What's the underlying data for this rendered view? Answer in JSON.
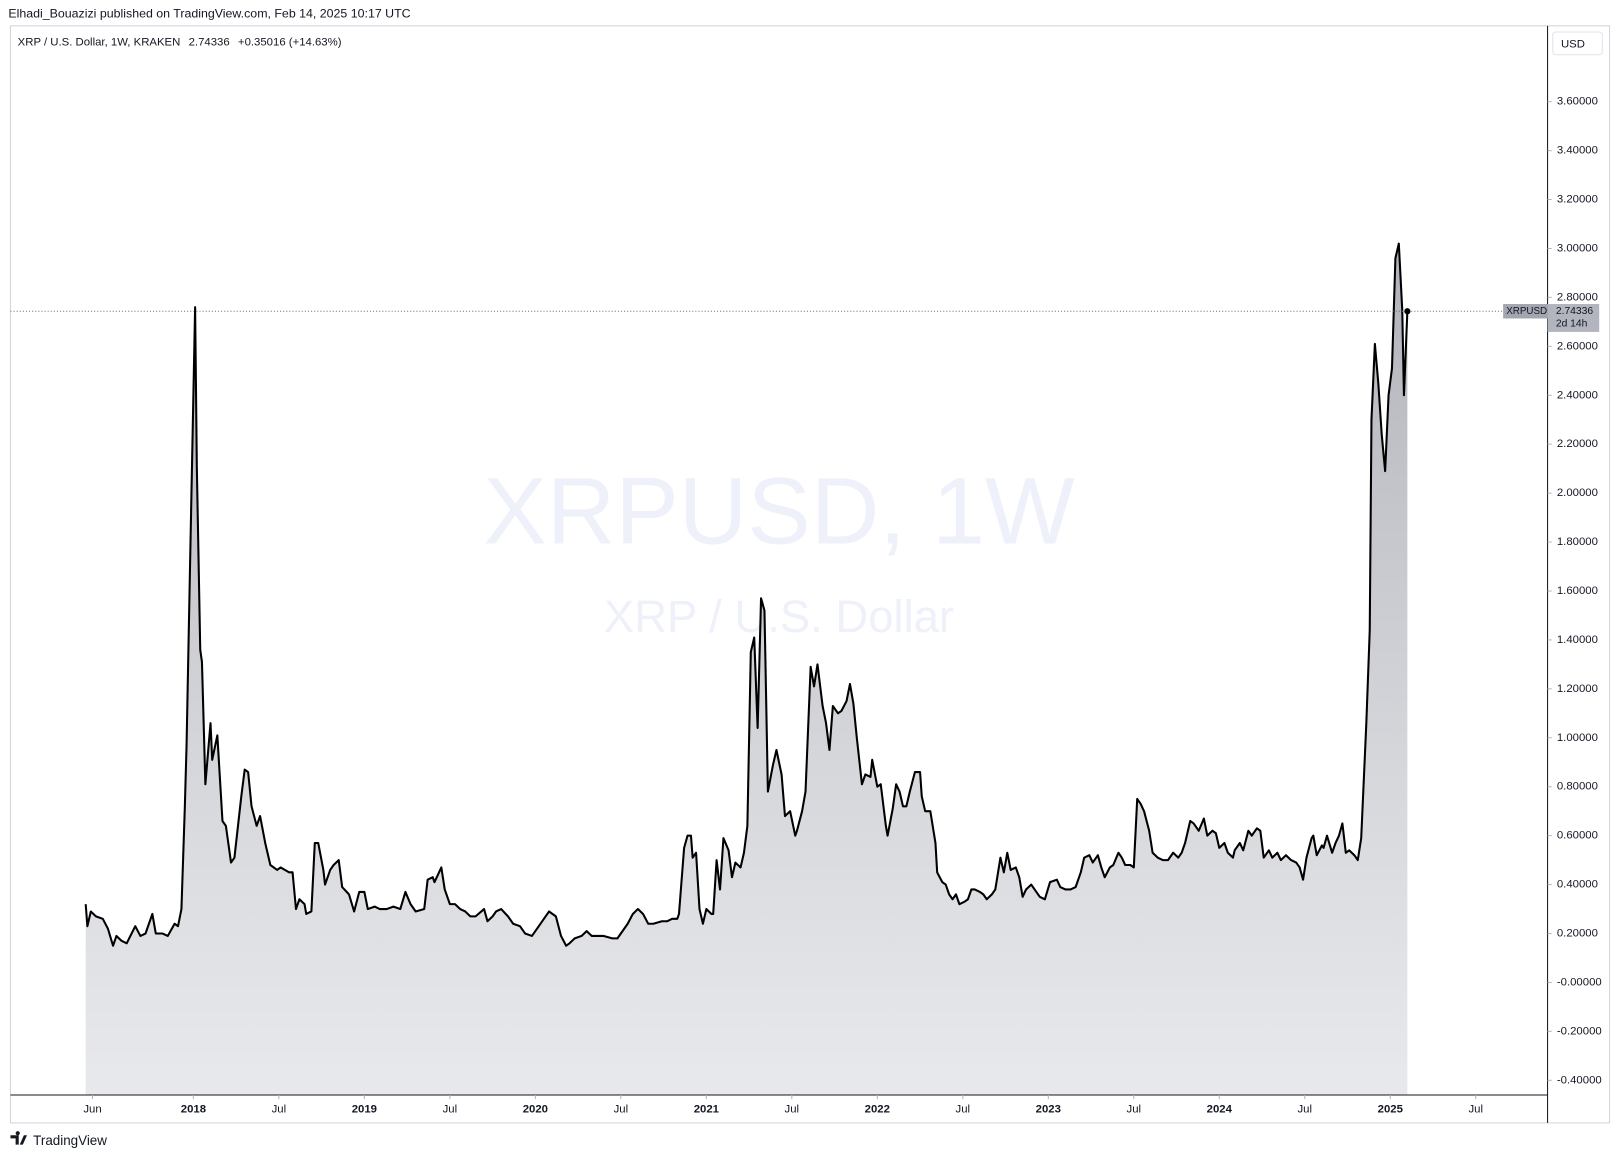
{
  "header": "Elhadi_Bouazizi published on TradingView.com, Feb 14, 2025 10:17 UTC",
  "footer": "TradingView",
  "chart_data": {
    "type": "area",
    "symbol": "XRP / U.S. Dollar, 1W, KRAKEN",
    "change": "+0.35016 (+14.63%)",
    "currency": "USD",
    "watermark": "XRPUSD, 1W",
    "watermark_subtitle": "XRP / U.S. Dollar",
    "countdown": "2d 14h",
    "x": [
      2017.37,
      2017.38,
      2017.4,
      2017.43,
      2017.47,
      2017.5,
      2017.53,
      2017.55,
      2017.58,
      2017.61,
      2017.66,
      2017.69,
      2017.72,
      2017.76,
      2017.78,
      2017.82,
      2017.85,
      2017.89,
      2017.91,
      2017.93,
      2017.95,
      2017.96,
      2017.98,
      2018.01,
      2018.02,
      2018.04,
      2018.05,
      2018.07,
      2018.1,
      2018.11,
      2018.14,
      2018.17,
      2018.19,
      2018.22,
      2018.24,
      2018.28,
      2018.3,
      2018.32,
      2018.34,
      2018.37,
      2018.39,
      2018.42,
      2018.45,
      2018.49,
      2018.51,
      2018.56,
      2018.58,
      2018.6,
      2018.62,
      2018.65,
      2018.66,
      2018.69,
      2018.71,
      2018.73,
      2018.76,
      2018.77,
      2018.8,
      2018.82,
      2018.85,
      2018.87,
      2018.91,
      2018.94,
      2018.97,
      2019.0,
      2019.02,
      2019.06,
      2019.09,
      2019.13,
      2019.17,
      2019.21,
      2019.24,
      2019.27,
      2019.3,
      2019.35,
      2019.37,
      2019.4,
      2019.41,
      2019.45,
      2019.47,
      2019.5,
      2019.53,
      2019.56,
      2019.59,
      2019.62,
      2019.65,
      2019.7,
      2019.72,
      2019.75,
      2019.77,
      2019.8,
      2019.84,
      2019.87,
      2019.91,
      2019.94,
      2019.98,
      2020.02,
      2020.05,
      2020.08,
      2020.12,
      2020.15,
      2020.18,
      2020.2,
      2020.23,
      2020.27,
      2020.3,
      2020.33,
      2020.36,
      2020.4,
      2020.45,
      2020.48,
      2020.52,
      2020.54,
      2020.57,
      2020.6,
      2020.63,
      2020.66,
      2020.69,
      2020.74,
      2020.77,
      2020.8,
      2020.83,
      2020.84,
      2020.87,
      2020.89,
      2020.91,
      2020.92,
      2020.94,
      2020.96,
      2020.98,
      2021.0,
      2021.03,
      2021.04,
      2021.06,
      2021.08,
      2021.1,
      2021.13,
      2021.15,
      2021.17,
      2021.2,
      2021.22,
      2021.24,
      2021.26,
      2021.28,
      2021.3,
      2021.32,
      2021.34,
      2021.36,
      2021.39,
      2021.41,
      2021.44,
      2021.46,
      2021.49,
      2021.52,
      2021.53,
      2021.56,
      2021.58,
      2021.61,
      2021.63,
      2021.65,
      2021.68,
      2021.7,
      2021.72,
      2021.74,
      2021.77,
      2021.79,
      2021.82,
      2021.84,
      2021.86,
      2021.88,
      2021.91,
      2021.93,
      2021.96,
      2021.97,
      2022.0,
      2022.02,
      2022.05,
      2022.06,
      2022.09,
      2022.11,
      2022.13,
      2022.15,
      2022.17,
      2022.19,
      2022.22,
      2022.25,
      2022.26,
      2022.28,
      2022.31,
      2022.34,
      2022.35,
      2022.38,
      2022.4,
      2022.42,
      2022.44,
      2022.46,
      2022.48,
      2022.51,
      2022.53,
      2022.55,
      2022.57,
      2022.6,
      2022.62,
      2022.64,
      2022.67,
      2022.69,
      2022.72,
      2022.74,
      2022.76,
      2022.78,
      2022.81,
      2022.83,
      2022.85,
      2022.87,
      2022.9,
      2022.92,
      2022.95,
      2022.98,
      2023.01,
      2023.05,
      2023.07,
      2023.1,
      2023.13,
      2023.16,
      2023.19,
      2023.21,
      2023.24,
      2023.26,
      2023.29,
      2023.31,
      2023.33,
      2023.36,
      2023.38,
      2023.41,
      2023.43,
      2023.45,
      2023.48,
      2023.5,
      2023.52,
      2023.54,
      2023.56,
      2023.59,
      2023.61,
      2023.64,
      2023.67,
      2023.7,
      2023.73,
      2023.76,
      2023.78,
      2023.8,
      2023.83,
      2023.85,
      2023.88,
      2023.91,
      2023.93,
      2023.96,
      2023.98,
      2024.0,
      2024.03,
      2024.05,
      2024.08,
      2024.09,
      2024.12,
      2024.14,
      2024.17,
      2024.19,
      2024.22,
      2024.24,
      2024.26,
      2024.29,
      2024.31,
      2024.34,
      2024.36,
      2024.39,
      2024.42,
      2024.45,
      2024.47,
      2024.49,
      2024.51,
      2024.54,
      2024.55,
      2024.57,
      2024.6,
      2024.61,
      2024.63,
      2024.66,
      2024.68,
      2024.7,
      2024.72,
      2024.74,
      2024.76,
      2024.79,
      2024.81,
      2024.83,
      2024.86,
      2024.88,
      2024.89,
      2024.91,
      2024.93,
      2024.95,
      2024.97,
      2024.99,
      2025.01,
      2025.03,
      2025.05,
      2025.07,
      2025.08,
      2025.1
    ],
    "series": [
      {
        "name": "XRPUSD",
        "color": "#000000",
        "values": [
          0.32,
          0.23,
          0.29,
          0.27,
          0.26,
          0.22,
          0.15,
          0.19,
          0.17,
          0.16,
          0.23,
          0.19,
          0.2,
          0.28,
          0.2,
          0.2,
          0.19,
          0.24,
          0.23,
          0.3,
          0.72,
          0.97,
          1.69,
          2.76,
          2.11,
          1.36,
          1.31,
          0.81,
          1.06,
          0.91,
          1.01,
          0.66,
          0.64,
          0.49,
          0.51,
          0.76,
          0.87,
          0.86,
          0.72,
          0.64,
          0.68,
          0.57,
          0.48,
          0.46,
          0.47,
          0.45,
          0.45,
          0.3,
          0.34,
          0.32,
          0.28,
          0.29,
          0.57,
          0.57,
          0.46,
          0.4,
          0.46,
          0.48,
          0.5,
          0.39,
          0.36,
          0.29,
          0.37,
          0.37,
          0.3,
          0.31,
          0.3,
          0.3,
          0.31,
          0.3,
          0.37,
          0.32,
          0.29,
          0.3,
          0.42,
          0.43,
          0.41,
          0.47,
          0.38,
          0.32,
          0.32,
          0.3,
          0.29,
          0.27,
          0.27,
          0.3,
          0.25,
          0.27,
          0.29,
          0.3,
          0.27,
          0.24,
          0.23,
          0.2,
          0.19,
          0.23,
          0.26,
          0.29,
          0.27,
          0.19,
          0.15,
          0.16,
          0.18,
          0.19,
          0.21,
          0.19,
          0.19,
          0.19,
          0.18,
          0.18,
          0.22,
          0.24,
          0.28,
          0.3,
          0.28,
          0.24,
          0.24,
          0.25,
          0.25,
          0.26,
          0.26,
          0.28,
          0.55,
          0.6,
          0.6,
          0.51,
          0.53,
          0.3,
          0.24,
          0.3,
          0.28,
          0.28,
          0.5,
          0.38,
          0.59,
          0.54,
          0.43,
          0.49,
          0.47,
          0.53,
          0.64,
          1.35,
          1.41,
          1.04,
          1.57,
          1.52,
          0.78,
          0.89,
          0.95,
          0.85,
          0.68,
          0.7,
          0.6,
          0.62,
          0.7,
          0.78,
          1.29,
          1.21,
          1.3,
          1.13,
          1.06,
          0.95,
          1.13,
          1.1,
          1.11,
          1.15,
          1.22,
          1.14,
          1.0,
          0.81,
          0.85,
          0.84,
          0.91,
          0.8,
          0.81,
          0.64,
          0.6,
          0.71,
          0.81,
          0.78,
          0.72,
          0.72,
          0.78,
          0.86,
          0.86,
          0.76,
          0.7,
          0.7,
          0.57,
          0.45,
          0.41,
          0.4,
          0.36,
          0.34,
          0.36,
          0.32,
          0.33,
          0.34,
          0.38,
          0.38,
          0.37,
          0.36,
          0.34,
          0.36,
          0.38,
          0.51,
          0.45,
          0.53,
          0.46,
          0.47,
          0.43,
          0.35,
          0.38,
          0.4,
          0.38,
          0.35,
          0.34,
          0.41,
          0.42,
          0.39,
          0.38,
          0.38,
          0.39,
          0.45,
          0.51,
          0.52,
          0.49,
          0.52,
          0.47,
          0.43,
          0.47,
          0.48,
          0.53,
          0.51,
          0.48,
          0.48,
          0.47,
          0.75,
          0.73,
          0.7,
          0.62,
          0.53,
          0.51,
          0.5,
          0.5,
          0.53,
          0.51,
          0.53,
          0.57,
          0.66,
          0.65,
          0.62,
          0.67,
          0.6,
          0.62,
          0.61,
          0.55,
          0.57,
          0.53,
          0.51,
          0.54,
          0.57,
          0.54,
          0.62,
          0.6,
          0.63,
          0.62,
          0.51,
          0.54,
          0.51,
          0.53,
          0.5,
          0.52,
          0.5,
          0.49,
          0.47,
          0.42,
          0.51,
          0.59,
          0.6,
          0.52,
          0.56,
          0.55,
          0.6,
          0.53,
          0.57,
          0.6,
          0.65,
          0.53,
          0.54,
          0.52,
          0.5,
          0.59,
          1.06,
          1.44,
          2.3,
          2.61,
          2.45,
          2.24,
          2.09,
          2.4,
          2.51,
          2.96,
          3.02,
          2.75,
          2.4,
          2.74336
        ]
      }
    ],
    "xlim": [
      2016.93,
      2025.92
    ],
    "ylim": [
      -0.46,
      3.91
    ],
    "xticks": [
      {
        "value": 2017.41,
        "label": "Jun"
      },
      2018,
      {
        "value": 2018.5,
        "label": "Jul"
      },
      2019,
      {
        "value": 2019.5,
        "label": "Jul"
      },
      2020,
      {
        "value": 2020.5,
        "label": "Jul"
      },
      2021,
      {
        "value": 2021.5,
        "label": "Jul"
      },
      2022,
      {
        "value": 2022.5,
        "label": "Jul"
      },
      2023,
      {
        "value": 2023.5,
        "label": "Jul"
      },
      2024,
      {
        "value": 2024.5,
        "label": "Jul"
      },
      2025,
      {
        "value": 2025.5,
        "label": "Jul"
      }
    ],
    "yticks": [
      {
        "value": -0.4,
        "label": "-0.40000"
      },
      {
        "value": -0.2,
        "label": "-0.20000"
      },
      {
        "value": 0,
        "label": "-0.00000"
      },
      {
        "value": 0.2,
        "label": "0.20000"
      },
      {
        "value": 0.4,
        "label": "0.40000"
      },
      {
        "value": 0.6,
        "label": "0.60000"
      },
      {
        "value": 0.8,
        "label": "0.80000"
      },
      {
        "value": 1.0,
        "label": "1.00000"
      },
      {
        "value": 1.2,
        "label": "1.20000"
      },
      {
        "value": 1.4,
        "label": "1.40000"
      },
      {
        "value": 1.6,
        "label": "1.60000"
      },
      {
        "value": 1.8,
        "label": "1.80000"
      },
      {
        "value": 2.0,
        "label": "2.00000"
      },
      {
        "value": 2.2,
        "label": "2.20000"
      },
      {
        "value": 2.4,
        "label": "2.40000"
      },
      {
        "value": 2.6,
        "label": "2.60000"
      },
      {
        "value": 2.8,
        "label": "2.80000"
      },
      {
        "value": 3.0,
        "label": "3.00000"
      },
      {
        "value": 3.2,
        "label": "3.20000"
      },
      {
        "value": 3.4,
        "label": "3.40000"
      },
      {
        "value": 3.6,
        "label": "3.60000"
      }
    ],
    "grid": false,
    "last_price_line": true
  }
}
